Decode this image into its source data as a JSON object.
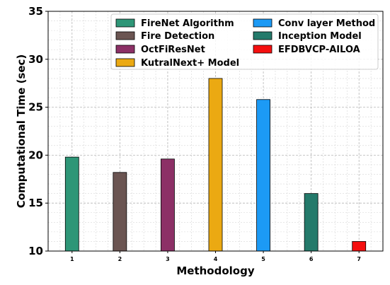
{
  "chart_data": {
    "type": "bar",
    "categories": [
      "1",
      "2",
      "3",
      "4",
      "5",
      "6",
      "7"
    ],
    "values": [
      19.8,
      18.2,
      19.6,
      28.0,
      25.8,
      16.0,
      11.0
    ],
    "series_names": [
      "FireNet Algorithm",
      "Fire Detection",
      "OctFiResNet",
      "KutralNext+ Model",
      "Conv layer Method",
      "Inception Model",
      "EFDBVCP-AILOA"
    ],
    "colors": [
      "#2e9677",
      "#6b5552",
      "#8c3066",
      "#eba912",
      "#1c9af5",
      "#247a6b",
      "#f50f0f"
    ],
    "xlabel": "Methodology",
    "ylabel": "Computational Time (sec)",
    "ylim": [
      10,
      35
    ],
    "yticks": [
      10,
      15,
      20,
      25,
      30,
      35
    ],
    "grid": true,
    "legend_position": "top-right"
  }
}
